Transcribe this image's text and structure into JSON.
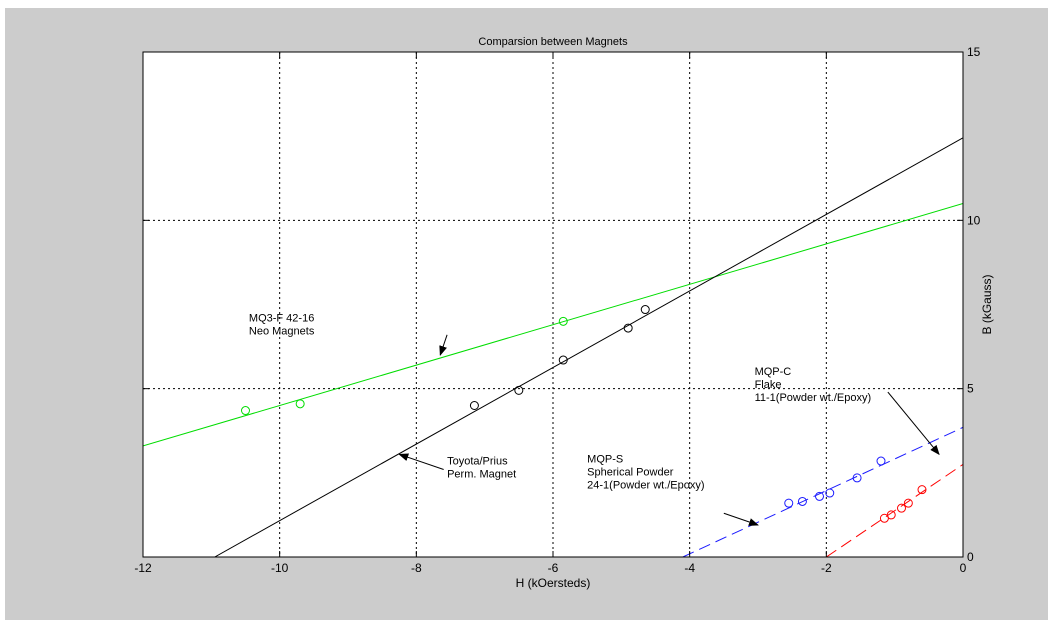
{
  "chart_data": {
    "type": "line",
    "title": "Comparsion between Magnets",
    "xlabel": "H (kOersteds)",
    "ylabel": "B (kGauss)",
    "xlim": [
      -12,
      0
    ],
    "ylim": [
      0,
      15
    ],
    "x_ticks": [
      -12,
      -10,
      -8,
      -6,
      -4,
      -2,
      0
    ],
    "y_ticks": [
      0,
      5,
      10,
      15
    ],
    "grid": true,
    "y_axis_side": "right",
    "series": [
      {
        "color": "#00dd00",
        "line_style": "solid",
        "fit_line": [
          [
            -12,
            3.3
          ],
          [
            0,
            10.5
          ]
        ],
        "points": [
          [
            -10.5,
            4.35
          ],
          [
            -9.7,
            4.55
          ],
          [
            -5.85,
            7.0
          ]
        ]
      },
      {
        "color": "#000000",
        "line_style": "solid",
        "fit_line": [
          [
            -10.95,
            0
          ],
          [
            0,
            12.45
          ]
        ],
        "points": [
          [
            -7.15,
            4.5
          ],
          [
            -6.5,
            4.95
          ],
          [
            -5.85,
            5.85
          ],
          [
            -4.9,
            6.8
          ],
          [
            -4.65,
            7.35
          ]
        ]
      },
      {
        "color": "#1a1aff",
        "line_style": "dashed",
        "fit_line": [
          [
            -4.1,
            0
          ],
          [
            0,
            3.85
          ]
        ],
        "points": [
          [
            -2.55,
            1.6
          ],
          [
            -2.35,
            1.65
          ],
          [
            -2.1,
            1.8
          ],
          [
            -1.95,
            1.9
          ],
          [
            -1.55,
            2.35
          ],
          [
            -1.2,
            2.85
          ]
        ]
      },
      {
        "color": "#ff0000",
        "line_style": "dashed",
        "fit_line": [
          [
            -2.0,
            0
          ],
          [
            0,
            2.75
          ]
        ],
        "points": [
          [
            -1.15,
            1.15
          ],
          [
            -1.05,
            1.25
          ],
          [
            -0.9,
            1.45
          ],
          [
            -0.8,
            1.6
          ],
          [
            -0.6,
            2.0
          ]
        ]
      }
    ],
    "annotations": [
      {
        "lines": [
          "MQ3-F 42-16",
          "Neo Magnets"
        ],
        "text_at": [
          -10.45,
          7.0
        ],
        "arrow_to": [
          -7.65,
          6.0
        ]
      },
      {
        "lines": [
          "Toyota/Prius",
          "Perm. Magnet"
        ],
        "text_at": [
          -7.55,
          2.75
        ],
        "arrow_to": [
          -8.25,
          3.05
        ]
      },
      {
        "lines": [
          "MQP-S",
          "Spherical Powder",
          "24-1(Powder wt./Epoxy)"
        ],
        "text_at": [
          -5.5,
          2.8
        ],
        "arrow_to": [
          -3.0,
          0.95
        ]
      },
      {
        "lines": [
          "MQP-C",
          "Flake",
          "11-1(Powder wt./Epoxy)"
        ],
        "text_at": [
          -3.05,
          5.4
        ],
        "arrow_to": [
          -0.35,
          3.05
        ]
      }
    ]
  }
}
